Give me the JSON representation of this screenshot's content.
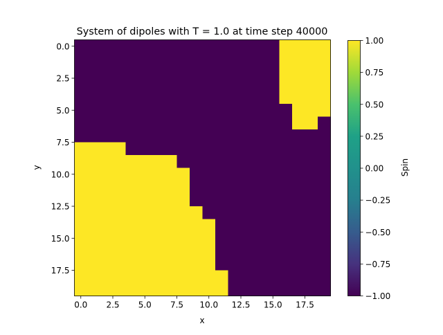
{
  "chart_data": {
    "type": "heatmap",
    "title": "System of dipoles with T = 1.0 at time step 40000",
    "xlabel": "x",
    "ylabel": "y",
    "colorbar_label": "Spin",
    "x_ticks": [
      "0.0",
      "2.5",
      "5.0",
      "7.5",
      "10.0",
      "12.5",
      "15.0",
      "17.5"
    ],
    "y_ticks": [
      "0.0",
      "2.5",
      "5.0",
      "7.5",
      "10.0",
      "12.5",
      "15.0",
      "17.5"
    ],
    "colorbar_ticks": [
      "1.00",
      "0.75",
      "0.50",
      "0.25",
      "0.00",
      "−0.25",
      "−0.50",
      "−0.75",
      "−1.00"
    ],
    "colorbar_range": [
      -1.0,
      1.0
    ],
    "colormap": "viridis",
    "colors": {
      "spin_up": "#fde725",
      "spin_down": "#440154"
    },
    "grid_size": [
      20,
      20
    ],
    "grid": [
      [
        -1,
        -1,
        -1,
        -1,
        -1,
        -1,
        -1,
        -1,
        -1,
        -1,
        -1,
        -1,
        -1,
        -1,
        -1,
        -1,
        1,
        1,
        1,
        1
      ],
      [
        -1,
        -1,
        -1,
        -1,
        -1,
        -1,
        -1,
        -1,
        -1,
        -1,
        -1,
        -1,
        -1,
        -1,
        -1,
        -1,
        1,
        1,
        1,
        1
      ],
      [
        -1,
        -1,
        -1,
        -1,
        -1,
        -1,
        -1,
        -1,
        -1,
        -1,
        -1,
        -1,
        -1,
        -1,
        -1,
        -1,
        1,
        1,
        1,
        1
      ],
      [
        -1,
        -1,
        -1,
        -1,
        -1,
        -1,
        -1,
        -1,
        -1,
        -1,
        -1,
        -1,
        -1,
        -1,
        -1,
        -1,
        1,
        1,
        1,
        1
      ],
      [
        -1,
        -1,
        -1,
        -1,
        -1,
        -1,
        -1,
        -1,
        -1,
        -1,
        -1,
        -1,
        -1,
        -1,
        -1,
        -1,
        1,
        1,
        1,
        1
      ],
      [
        -1,
        -1,
        -1,
        -1,
        -1,
        -1,
        -1,
        -1,
        -1,
        -1,
        -1,
        -1,
        -1,
        -1,
        -1,
        -1,
        -1,
        1,
        1,
        1
      ],
      [
        -1,
        -1,
        -1,
        -1,
        -1,
        -1,
        -1,
        -1,
        -1,
        -1,
        -1,
        -1,
        -1,
        -1,
        -1,
        -1,
        -1,
        1,
        1,
        -1
      ],
      [
        -1,
        -1,
        -1,
        -1,
        -1,
        -1,
        -1,
        -1,
        -1,
        -1,
        -1,
        -1,
        -1,
        -1,
        -1,
        -1,
        -1,
        -1,
        -1,
        -1
      ],
      [
        1,
        1,
        1,
        1,
        -1,
        -1,
        -1,
        -1,
        -1,
        -1,
        -1,
        -1,
        -1,
        -1,
        -1,
        -1,
        -1,
        -1,
        -1,
        -1
      ],
      [
        1,
        1,
        1,
        1,
        1,
        1,
        1,
        1,
        -1,
        -1,
        -1,
        -1,
        -1,
        -1,
        -1,
        -1,
        -1,
        -1,
        -1,
        -1
      ],
      [
        1,
        1,
        1,
        1,
        1,
        1,
        1,
        1,
        1,
        -1,
        -1,
        -1,
        -1,
        -1,
        -1,
        -1,
        -1,
        -1,
        -1,
        -1
      ],
      [
        1,
        1,
        1,
        1,
        1,
        1,
        1,
        1,
        1,
        -1,
        -1,
        -1,
        -1,
        -1,
        -1,
        -1,
        -1,
        -1,
        -1,
        -1
      ],
      [
        1,
        1,
        1,
        1,
        1,
        1,
        1,
        1,
        1,
        -1,
        -1,
        -1,
        -1,
        -1,
        -1,
        -1,
        -1,
        -1,
        -1,
        -1
      ],
      [
        1,
        1,
        1,
        1,
        1,
        1,
        1,
        1,
        1,
        1,
        -1,
        -1,
        -1,
        -1,
        -1,
        -1,
        -1,
        -1,
        -1,
        -1
      ],
      [
        1,
        1,
        1,
        1,
        1,
        1,
        1,
        1,
        1,
        1,
        1,
        -1,
        -1,
        -1,
        -1,
        -1,
        -1,
        -1,
        -1,
        -1
      ],
      [
        1,
        1,
        1,
        1,
        1,
        1,
        1,
        1,
        1,
        1,
        1,
        -1,
        -1,
        -1,
        -1,
        -1,
        -1,
        -1,
        -1,
        -1
      ],
      [
        1,
        1,
        1,
        1,
        1,
        1,
        1,
        1,
        1,
        1,
        1,
        -1,
        -1,
        -1,
        -1,
        -1,
        -1,
        -1,
        -1,
        -1
      ],
      [
        1,
        1,
        1,
        1,
        1,
        1,
        1,
        1,
        1,
        1,
        1,
        -1,
        -1,
        -1,
        -1,
        -1,
        -1,
        -1,
        -1,
        -1
      ],
      [
        1,
        1,
        1,
        1,
        1,
        1,
        1,
        1,
        1,
        1,
        1,
        1,
        -1,
        -1,
        -1,
        -1,
        -1,
        -1,
        -1,
        -1
      ],
      [
        1,
        1,
        1,
        1,
        1,
        1,
        1,
        1,
        1,
        1,
        1,
        1,
        -1,
        -1,
        -1,
        -1,
        -1,
        -1,
        -1,
        -1
      ]
    ]
  }
}
